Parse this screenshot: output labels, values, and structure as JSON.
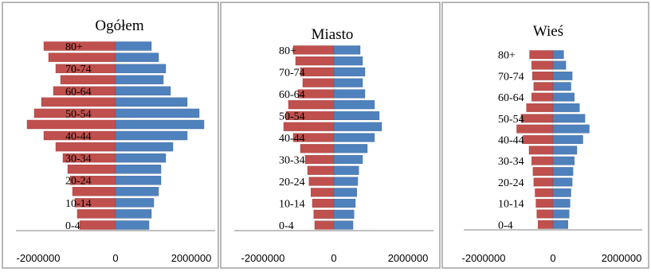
{
  "chart_data": [
    {
      "type": "bar",
      "orientation": "horizontal",
      "title": "Ogółem",
      "categories": [
        "0-4",
        "5-9",
        "10-14",
        "15-19",
        "20-24",
        "25-29",
        "30-34",
        "35-39",
        "40-44",
        "45-49",
        "50-54",
        "55-59",
        "60-64",
        "65-69",
        "70-74",
        "75-79",
        "80+"
      ],
      "category_labels_shown": [
        "0-4",
        "10-14",
        "20-24",
        "30-34",
        "40-44",
        "50-54",
        "60-64",
        "70-74",
        "80+"
      ],
      "series": [
        {
          "color": "#c0504d",
          "values": [
            -750000,
            -800000,
            -850000,
            -900000,
            -950000,
            -1000000,
            -1100000,
            -1250000,
            -1500000,
            -1850000,
            -1700000,
            -1550000,
            -1300000,
            -1150000,
            -1250000,
            -1400000,
            -1500000
          ]
        },
        {
          "color": "#4f81bd",
          "values": [
            700000,
            750000,
            800000,
            900000,
            950000,
            950000,
            1050000,
            1200000,
            1500000,
            1850000,
            1750000,
            1500000,
            1150000,
            1000000,
            1050000,
            900000,
            750000
          ]
        }
      ],
      "xlim": [
        -2000000,
        2000000
      ],
      "xticks": [
        "-2000000",
        "0",
        "2000000"
      ]
    },
    {
      "type": "bar",
      "orientation": "horizontal",
      "title": "Miasto",
      "categories": [
        "0-4",
        "5-9",
        "10-14",
        "15-19",
        "20-24",
        "25-29",
        "30-34",
        "35-39",
        "40-44",
        "45-49",
        "50-54",
        "55-59",
        "60-64",
        "65-69",
        "70-74",
        "75-79",
        "80+"
      ],
      "category_labels_shown": [
        "0-4",
        "10-14",
        "20-24",
        "30-34",
        "40-44",
        "50-54",
        "60-64",
        "70-74",
        "80+"
      ],
      "series": [
        {
          "color": "#c0504d",
          "values": [
            -400000,
            -420000,
            -450000,
            -480000,
            -520000,
            -550000,
            -600000,
            -700000,
            -850000,
            -1050000,
            -1000000,
            -950000,
            -750000,
            -650000,
            -700000,
            -800000,
            -850000
          ]
        },
        {
          "color": "#4f81bd",
          "values": [
            400000,
            420000,
            450000,
            480000,
            500000,
            520000,
            600000,
            700000,
            850000,
            1000000,
            950000,
            850000,
            650000,
            600000,
            650000,
            600000,
            550000
          ]
        }
      ],
      "xlim": [
        -2000000,
        2000000
      ],
      "xticks": [
        "-2000000",
        "0",
        "2000000"
      ]
    },
    {
      "type": "bar",
      "orientation": "horizontal",
      "title": "Wieś",
      "categories": [
        "0-4",
        "5-9",
        "10-14",
        "15-19",
        "20-24",
        "25-29",
        "30-34",
        "35-39",
        "40-44",
        "45-49",
        "50-54",
        "55-59",
        "60-64",
        "65-69",
        "70-74",
        "75-79",
        "80+"
      ],
      "category_labels_shown": [
        "0-4",
        "10-14",
        "20-24",
        "30-34",
        "40-44",
        "50-54",
        "60-64",
        "70-74",
        "80+"
      ],
      "series": [
        {
          "color": "#c0504d",
          "values": [
            -350000,
            -380000,
            -400000,
            -420000,
            -450000,
            -470000,
            -500000,
            -560000,
            -700000,
            -850000,
            -750000,
            -620000,
            -500000,
            -450000,
            -480000,
            -500000,
            -550000
          ]
        },
        {
          "color": "#4f81bd",
          "values": [
            350000,
            380000,
            400000,
            420000,
            450000,
            470000,
            500000,
            560000,
            700000,
            850000,
            750000,
            620000,
            500000,
            420000,
            450000,
            300000,
            250000
          ]
        }
      ],
      "xlim": [
        -2000000,
        2000000
      ],
      "xticks": [
        "-2000000",
        "0",
        "2000000"
      ]
    }
  ]
}
